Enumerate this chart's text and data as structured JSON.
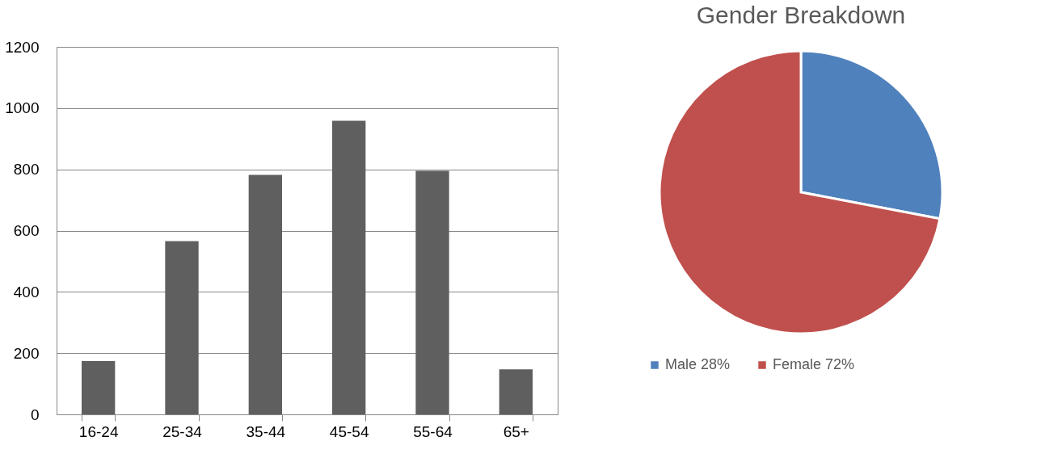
{
  "chart_data": [
    {
      "type": "bar",
      "categories": [
        "16-24",
        "25-34",
        "35-44",
        "45-54",
        "55-64",
        "65+"
      ],
      "values": [
        174,
        566,
        782,
        959,
        795,
        147
      ],
      "color": "#5f5f5f",
      "ylim": [
        0,
        1200
      ],
      "yticks": [
        0,
        200,
        400,
        600,
        800,
        1000,
        1200
      ],
      "grid": "y"
    },
    {
      "type": "pie",
      "title": "Gender Breakdown",
      "categories": [
        "Male 28%",
        "Female 72%"
      ],
      "values": [
        28,
        72
      ],
      "colors": [
        "#4f81bd",
        "#c0504d"
      ],
      "legend": "bottom"
    }
  ]
}
